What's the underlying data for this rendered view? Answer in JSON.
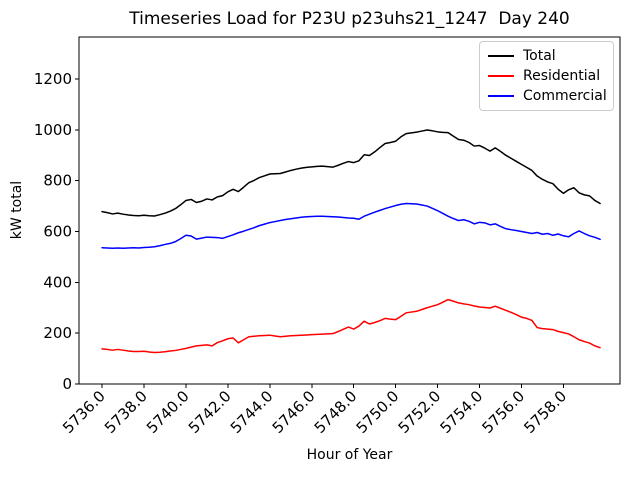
{
  "chart_data": {
    "type": "line",
    "title": "Timeseries Load for P23U p23uhs21_1247  Day 240",
    "xlabel": "Hour of Year",
    "ylabel": "kW total",
    "background": "#ffffff",
    "grid": false,
    "legend_position": "upper right",
    "xlim": [
      5734.9,
      5760.7
    ],
    "ylim": [
      0,
      1365
    ],
    "x_ticks": {
      "values": [
        5736,
        5738,
        5740,
        5742,
        5744,
        5746,
        5748,
        5750,
        5752,
        5754,
        5756,
        5758
      ],
      "labels": [
        "5736.0",
        "5738.0",
        "5740.0",
        "5742.0",
        "5744.0",
        "5746.0",
        "5748.0",
        "5750.0",
        "5752.0",
        "5754.0",
        "5756.0",
        "5758.0"
      ],
      "rotation": 45
    },
    "y_ticks": {
      "values": [
        0,
        200,
        400,
        600,
        800,
        1000,
        1200
      ],
      "labels": [
        "0",
        "200",
        "400",
        "600",
        "800",
        "1000",
        "1200"
      ]
    },
    "x": [
      5736.0,
      5736.25,
      5736.5,
      5736.75,
      5737.0,
      5737.25,
      5737.5,
      5737.75,
      5738.0,
      5738.25,
      5738.5,
      5738.75,
      5739.0,
      5739.25,
      5739.5,
      5739.75,
      5740.0,
      5740.25,
      5740.5,
      5740.75,
      5741.0,
      5741.25,
      5741.5,
      5741.75,
      5742.0,
      5742.25,
      5742.5,
      5742.75,
      5743.0,
      5743.25,
      5743.5,
      5743.75,
      5744.0,
      5744.25,
      5744.5,
      5744.75,
      5745.0,
      5745.25,
      5745.5,
      5745.75,
      5746.0,
      5746.25,
      5746.5,
      5746.75,
      5747.0,
      5747.25,
      5747.5,
      5747.75,
      5748.0,
      5748.25,
      5748.5,
      5748.75,
      5749.0,
      5749.25,
      5749.5,
      5749.75,
      5750.0,
      5750.25,
      5750.5,
      5750.75,
      5751.0,
      5751.25,
      5751.5,
      5751.75,
      5752.0,
      5752.25,
      5752.5,
      5752.75,
      5753.0,
      5753.25,
      5753.5,
      5753.75,
      5754.0,
      5754.25,
      5754.5,
      5754.75,
      5755.0,
      5755.25,
      5755.5,
      5755.75,
      5756.0,
      5756.25,
      5756.5,
      5756.75,
      5757.0,
      5757.25,
      5757.5,
      5757.75,
      5758.0,
      5758.25,
      5758.5,
      5758.75,
      5759.0,
      5759.25,
      5759.5,
      5759.75
    ],
    "series": [
      {
        "name": "Total",
        "color": "#000000",
        "values": [
          678,
          674,
          669,
          672,
          668,
          665,
          663,
          662,
          664,
          662,
          661,
          666,
          672,
          680,
          690,
          705,
          722,
          726,
          714,
          719,
          728,
          724,
          736,
          741,
          756,
          766,
          757,
          774,
          792,
          801,
          812,
          819,
          826,
          827,
          828,
          834,
          840,
          845,
          849,
          852,
          854,
          856,
          857,
          855,
          853,
          860,
          868,
          875,
          871,
          878,
          902,
          899,
          913,
          930,
          946,
          950,
          955,
          972,
          985,
          988,
          991,
          995,
          999,
          996,
          992,
          990,
          989,
          975,
          962,
          959,
          950,
          936,
          938,
          928,
          916,
          929,
          915,
          900,
          888,
          876,
          864,
          852,
          840,
          818,
          805,
          795,
          788,
          766,
          750,
          764,
          772,
          752,
          744,
          740,
          722,
          710
        ]
      },
      {
        "name": "Residential",
        "color": "#ff0000",
        "values": [
          138,
          136,
          133,
          136,
          133,
          130,
          128,
          128,
          129,
          126,
          124,
          125,
          127,
          130,
          132,
          136,
          140,
          145,
          150,
          152,
          154,
          150,
          163,
          170,
          178,
          181,
          162,
          174,
          186,
          188,
          190,
          191,
          192,
          189,
          186,
          188,
          190,
          191,
          192,
          193,
          194,
          195,
          196,
          197,
          198,
          206,
          215,
          224,
          216,
          228,
          247,
          236,
          242,
          249,
          258,
          255,
          253,
          266,
          280,
          283,
          286,
          293,
          300,
          306,
          312,
          322,
          332,
          326,
          319,
          315,
          312,
          307,
          303,
          301,
          299,
          306,
          298,
          290,
          282,
          273,
          263,
          258,
          250,
          222,
          218,
          216,
          214,
          207,
          202,
          197,
          186,
          174,
          167,
          161,
          150,
          143
        ]
      },
      {
        "name": "Commercial",
        "color": "#0000ff",
        "values": [
          536,
          535,
          534,
          535,
          534,
          535,
          536,
          535,
          537,
          538,
          540,
          544,
          549,
          553,
          560,
          572,
          585,
          582,
          570,
          574,
          578,
          577,
          576,
          573,
          580,
          587,
          595,
          601,
          608,
          615,
          623,
          629,
          635,
          639,
          643,
          647,
          650,
          653,
          656,
          658,
          659,
          660,
          660,
          659,
          658,
          657,
          655,
          653,
          652,
          648,
          660,
          668,
          676,
          683,
          690,
          696,
          702,
          707,
          710,
          709,
          708,
          704,
          700,
          691,
          682,
          671,
          660,
          651,
          643,
          646,
          640,
          630,
          636,
          634,
          626,
          630,
          620,
          611,
          607,
          604,
          600,
          596,
          592,
          596,
          589,
          592,
          585,
          590,
          583,
          579,
          592,
          602,
          592,
          583,
          577,
          569
        ]
      }
    ]
  }
}
